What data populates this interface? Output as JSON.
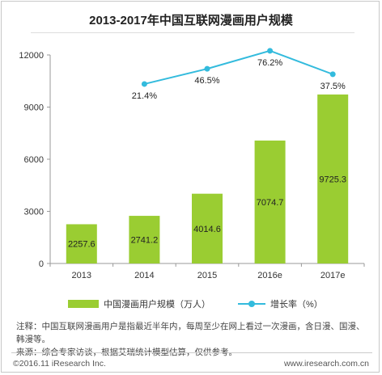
{
  "title": "2013-2017年中国互联网漫画用户规模",
  "colors": {
    "bar": "#9ACD32",
    "line": "#33BBDD",
    "axis": "#999999",
    "text": "#333333"
  },
  "chart_data": {
    "type": "bar",
    "categories": [
      "2013",
      "2014",
      "2015",
      "2016e",
      "2017e"
    ],
    "values": [
      2257.6,
      2741.2,
      4014.6,
      7074.7,
      9725.3
    ],
    "value_labels": [
      "2257.6",
      "2741.2",
      "4014.6",
      "7074.7",
      "9725.3"
    ],
    "ylim": [
      0,
      12000
    ],
    "yticks": [
      0,
      3000,
      6000,
      9000,
      12000
    ],
    "ytick_labels": [
      "0",
      "3000",
      "6000",
      "9000",
      "12000"
    ],
    "grid": false,
    "legend_position": "bottom",
    "series": [
      {
        "name": "中国漫画用户规模（万人）",
        "type": "bar",
        "values": [
          2257.6,
          2741.2,
          4014.6,
          7074.7,
          9725.3
        ]
      },
      {
        "name": "增长率（%）",
        "type": "line",
        "values": [
          null,
          21.4,
          46.5,
          76.2,
          37.5
        ],
        "labels": [
          "",
          "21.4%",
          "46.5%",
          "76.2%",
          "37.5%"
        ]
      }
    ]
  },
  "legend": {
    "bar_label": "中国漫画用户规模（万人）",
    "line_label": "增长率（%）"
  },
  "notes": {
    "line1": "注释：中国互联网漫画用户是指最近半年内，每周至少在网上看过一次漫画，含日漫、国漫、韩漫等。",
    "line2": "来源：综合专家访谈，根据艾瑞统计模型估算，仅供参考。"
  },
  "footer": {
    "copyright": "©2016.11 iResearch Inc.",
    "url": "www.iresearch.com.cn"
  }
}
